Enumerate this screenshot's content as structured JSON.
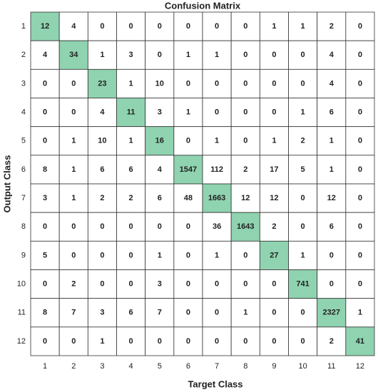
{
  "chart_data": {
    "type": "confusion-matrix",
    "title": "Confusion Matrix",
    "xlabel": "Target Class",
    "ylabel": "Output Class",
    "x_categories": [
      1,
      2,
      3,
      4,
      5,
      6,
      7,
      8,
      9,
      10,
      11,
      12
    ],
    "y_categories": [
      1,
      2,
      3,
      4,
      5,
      6,
      7,
      8,
      9,
      10,
      11,
      12
    ],
    "matrix": [
      [
        12,
        4,
        0,
        0,
        0,
        0,
        0,
        0,
        1,
        1,
        2,
        0
      ],
      [
        4,
        34,
        1,
        3,
        0,
        1,
        1,
        0,
        0,
        0,
        4,
        0
      ],
      [
        0,
        0,
        23,
        1,
        10,
        0,
        0,
        0,
        0,
        0,
        4,
        0
      ],
      [
        0,
        0,
        4,
        11,
        3,
        1,
        0,
        0,
        0,
        1,
        6,
        0
      ],
      [
        0,
        1,
        10,
        1,
        16,
        0,
        1,
        0,
        1,
        2,
        1,
        0
      ],
      [
        8,
        1,
        6,
        6,
        4,
        1547,
        112,
        2,
        17,
        5,
        1,
        0
      ],
      [
        3,
        1,
        2,
        2,
        6,
        48,
        1663,
        12,
        12,
        0,
        12,
        0
      ],
      [
        0,
        0,
        0,
        0,
        0,
        0,
        36,
        1643,
        2,
        0,
        6,
        0
      ],
      [
        5,
        0,
        0,
        0,
        1,
        0,
        1,
        0,
        27,
        1,
        0,
        0
      ],
      [
        0,
        2,
        0,
        0,
        3,
        0,
        0,
        0,
        0,
        741,
        0,
        0
      ],
      [
        8,
        7,
        3,
        6,
        7,
        0,
        0,
        1,
        0,
        0,
        2327,
        1
      ],
      [
        0,
        0,
        1,
        0,
        0,
        0,
        0,
        0,
        0,
        0,
        2,
        41
      ]
    ],
    "diagonal_color": "#8fd3b0",
    "cell_color": "#ffffff"
  }
}
